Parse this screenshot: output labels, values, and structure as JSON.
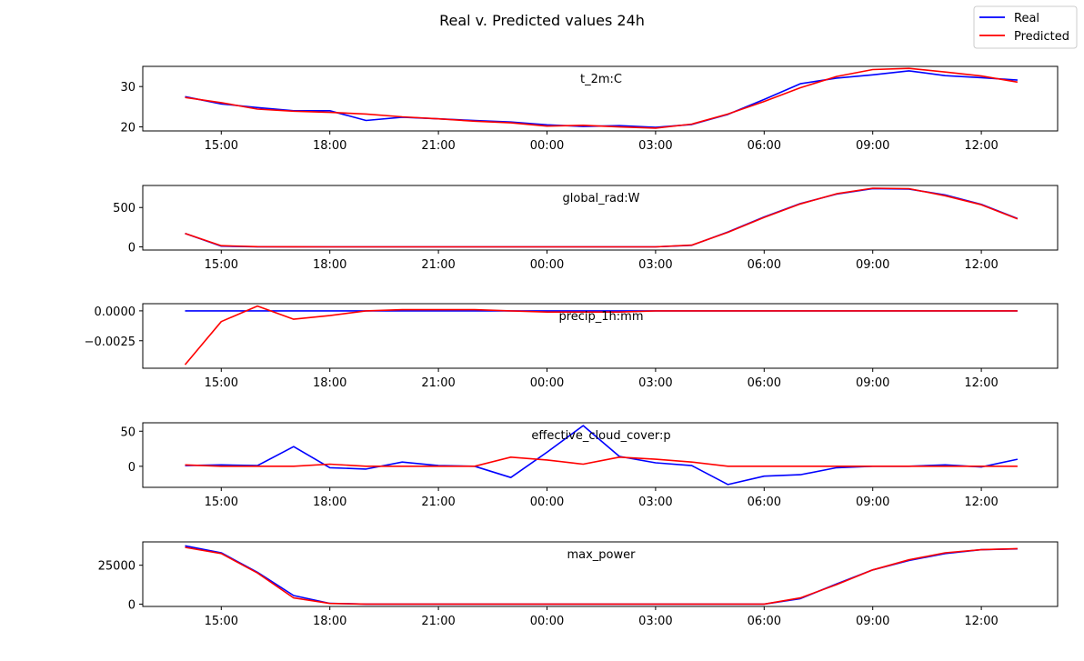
{
  "title": "Real v. Predicted values 24h",
  "legend": {
    "placement": "top-right",
    "entries": [
      {
        "name": "Real",
        "color": "#0000ff"
      },
      {
        "name": "Predicted",
        "color": "#ff0000"
      }
    ]
  },
  "chart_data": [
    {
      "type": "line",
      "title": "t_2m:C",
      "x": [
        "14:00",
        "15:00",
        "16:00",
        "17:00",
        "18:00",
        "19:00",
        "20:00",
        "21:00",
        "22:00",
        "23:00",
        "00:00",
        "01:00",
        "02:00",
        "03:00",
        "04:00",
        "05:00",
        "06:00",
        "07:00",
        "08:00",
        "09:00",
        "10:00",
        "11:00",
        "12:00",
        "13:00"
      ],
      "xticks": [
        "15:00",
        "18:00",
        "21:00",
        "00:00",
        "03:00",
        "06:00",
        "09:00",
        "12:00"
      ],
      "ylim": [
        19,
        35
      ],
      "yticks": [
        {
          "value": 20,
          "label": "20"
        },
        {
          "value": 30,
          "label": "30"
        }
      ],
      "series": [
        {
          "name": "Real",
          "values": [
            27.5,
            25.7,
            24.8,
            24.0,
            24.0,
            21.6,
            22.4,
            22.0,
            21.6,
            21.2,
            20.5,
            20.1,
            20.3,
            19.9,
            20.6,
            23.1,
            26.8,
            30.7,
            32.1,
            32.9,
            33.9,
            32.7,
            32.2,
            31.6
          ]
        },
        {
          "name": "Predicted",
          "values": [
            27.3,
            26.0,
            24.4,
            23.9,
            23.6,
            23.2,
            22.5,
            22.0,
            21.4,
            21.0,
            20.2,
            20.4,
            20.0,
            19.7,
            20.7,
            23.2,
            26.3,
            29.7,
            32.5,
            34.2,
            34.5,
            33.6,
            32.6,
            31.1
          ]
        }
      ]
    },
    {
      "type": "line",
      "title": "global_rad:W",
      "x": [
        "14:00",
        "15:00",
        "16:00",
        "17:00",
        "18:00",
        "19:00",
        "20:00",
        "21:00",
        "22:00",
        "23:00",
        "00:00",
        "01:00",
        "02:00",
        "03:00",
        "04:00",
        "05:00",
        "06:00",
        "07:00",
        "08:00",
        "09:00",
        "10:00",
        "11:00",
        "12:00",
        "13:00"
      ],
      "xticks": [
        "15:00",
        "18:00",
        "21:00",
        "00:00",
        "03:00",
        "06:00",
        "09:00",
        "12:00"
      ],
      "ylim": [
        -40,
        780
      ],
      "yticks": [
        {
          "value": 0,
          "label": "0"
        },
        {
          "value": 500,
          "label": "500"
        }
      ],
      "series": [
        {
          "name": "Real",
          "values": [
            170,
            10,
            2,
            0,
            0,
            0,
            0,
            0,
            0,
            0,
            0,
            0,
            0,
            0,
            20,
            190,
            380,
            550,
            670,
            740,
            735,
            660,
            540,
            360
          ]
        },
        {
          "name": "Predicted",
          "values": [
            170,
            15,
            3,
            1,
            0,
            0,
            0,
            0,
            0,
            0,
            0,
            0,
            0,
            0,
            22,
            185,
            375,
            545,
            675,
            745,
            740,
            650,
            535,
            355
          ]
        }
      ]
    },
    {
      "type": "line",
      "title": "precip_1h:mm",
      "x": [
        "14:00",
        "15:00",
        "16:00",
        "17:00",
        "18:00",
        "19:00",
        "20:00",
        "21:00",
        "22:00",
        "23:00",
        "00:00",
        "01:00",
        "02:00",
        "03:00",
        "04:00",
        "05:00",
        "06:00",
        "07:00",
        "08:00",
        "09:00",
        "10:00",
        "11:00",
        "12:00",
        "13:00"
      ],
      "xticks": [
        "15:00",
        "18:00",
        "21:00",
        "00:00",
        "03:00",
        "06:00",
        "09:00",
        "12:00"
      ],
      "ylim": [
        -0.0048,
        0.0006
      ],
      "yticks": [
        {
          "value": 0,
          "label": "0.0000"
        },
        {
          "value": -0.0025,
          "label": "−0.0025"
        }
      ],
      "series": [
        {
          "name": "Real",
          "values": [
            0,
            0,
            0,
            0,
            0,
            0,
            0,
            0,
            0,
            0,
            0,
            0,
            0,
            0,
            0,
            0,
            0,
            0,
            0,
            0,
            0,
            0,
            0,
            0
          ]
        },
        {
          "name": "Predicted",
          "values": [
            -0.0045,
            -0.0009,
            0.0004,
            -0.0007,
            -0.0004,
            0.0,
            0.0001,
            0.0001,
            0.0001,
            0.0,
            -0.0001,
            -0.0001,
            -0.0001,
            0.0,
            0.0,
            0.0,
            0.0,
            0.0,
            0.0,
            0.0,
            0.0,
            0.0,
            0.0,
            0.0
          ]
        }
      ]
    },
    {
      "type": "line",
      "title": "effective_cloud_cover:p",
      "x": [
        "14:00",
        "15:00",
        "16:00",
        "17:00",
        "18:00",
        "19:00",
        "20:00",
        "21:00",
        "22:00",
        "23:00",
        "00:00",
        "01:00",
        "02:00",
        "03:00",
        "04:00",
        "05:00",
        "06:00",
        "07:00",
        "08:00",
        "09:00",
        "10:00",
        "11:00",
        "12:00",
        "13:00"
      ],
      "xticks": [
        "15:00",
        "18:00",
        "21:00",
        "00:00",
        "03:00",
        "06:00",
        "09:00",
        "12:00"
      ],
      "ylim": [
        -30,
        62
      ],
      "yticks": [
        {
          "value": 0,
          "label": "0"
        },
        {
          "value": 50,
          "label": "50"
        }
      ],
      "series": [
        {
          "name": "Real",
          "values": [
            1,
            2,
            1,
            28,
            -2,
            -4,
            6,
            1,
            0,
            -16,
            20,
            58,
            14,
            5,
            1,
            -26,
            -14,
            -12,
            -2,
            0,
            0,
            2,
            -1,
            10
          ]
        },
        {
          "name": "Predicted",
          "values": [
            2,
            0,
            0,
            0,
            3,
            0,
            0,
            0,
            0,
            13,
            9,
            3,
            13,
            10,
            6,
            0,
            0,
            0,
            0,
            0,
            0,
            0,
            0,
            0
          ]
        }
      ]
    },
    {
      "type": "line",
      "title": "max_power",
      "x": [
        "14:00",
        "15:00",
        "16:00",
        "17:00",
        "18:00",
        "19:00",
        "20:00",
        "21:00",
        "22:00",
        "23:00",
        "00:00",
        "01:00",
        "02:00",
        "03:00",
        "04:00",
        "05:00",
        "06:00",
        "07:00",
        "08:00",
        "09:00",
        "10:00",
        "11:00",
        "12:00",
        "13:00"
      ],
      "xticks": [
        "15:00",
        "18:00",
        "21:00",
        "00:00",
        "03:00",
        "06:00",
        "09:00",
        "12:00"
      ],
      "ylim": [
        -1500,
        40000
      ],
      "yticks": [
        {
          "value": 0,
          "label": "0"
        },
        {
          "value": 25000,
          "label": "25000"
        }
      ],
      "series": [
        {
          "name": "Real",
          "values": [
            37500,
            33000,
            20500,
            5500,
            500,
            0,
            0,
            0,
            0,
            0,
            0,
            0,
            0,
            0,
            0,
            0,
            0,
            3500,
            13000,
            22000,
            28000,
            32500,
            35000,
            35500
          ]
        },
        {
          "name": "Predicted",
          "values": [
            36500,
            32500,
            20000,
            4000,
            400,
            0,
            0,
            0,
            0,
            0,
            0,
            0,
            0,
            0,
            0,
            0,
            0,
            4000,
            12500,
            22000,
            28500,
            33000,
            35000,
            35700
          ]
        }
      ]
    }
  ]
}
